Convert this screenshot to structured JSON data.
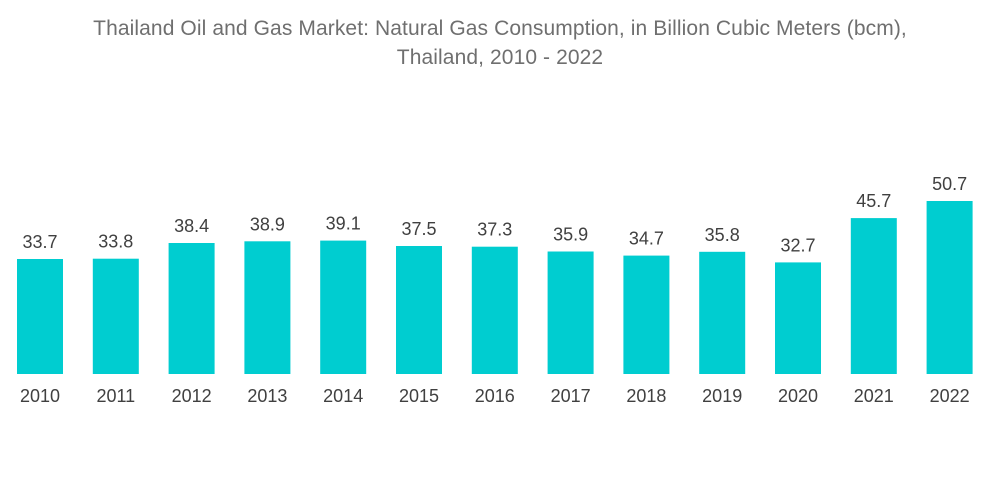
{
  "chart_data": {
    "type": "bar",
    "title_lines": [
      "Thailand Oil and Gas Market: Natural Gas Consumption, in Billion Cubic Meters (bcm),",
      "Thailand, 2010 - 2022"
    ],
    "categories": [
      "2010",
      "2011",
      "2012",
      "2013",
      "2014",
      "2015",
      "2016",
      "2017",
      "2018",
      "2019",
      "2020",
      "2021",
      "2022"
    ],
    "values": [
      33.7,
      33.8,
      38.4,
      38.9,
      39.1,
      37.5,
      37.3,
      35.9,
      34.7,
      35.8,
      32.7,
      45.7,
      50.7
    ],
    "xlabel": "",
    "ylabel": "",
    "ylim": [
      0,
      50.7
    ],
    "grid": false,
    "legend": "none",
    "colors": {
      "bar": "#00cdd0",
      "title": "#6f6f6f",
      "label": "#404040"
    }
  }
}
